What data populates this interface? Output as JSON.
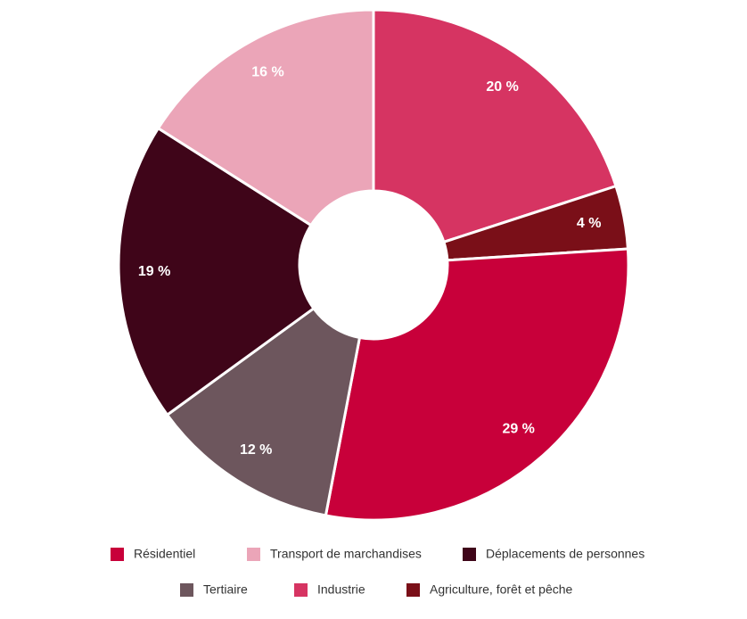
{
  "chart_data": {
    "type": "donut",
    "categories": [
      "Industrie",
      "Agriculture, forêt et pêche",
      "Résidentiel",
      "Tertiaire",
      "Déplacements de personnes",
      "Transport de marchandises"
    ],
    "values": [
      20,
      4,
      29,
      12,
      19,
      16
    ],
    "value_labels": [
      "20 %",
      "4 %",
      "29 %",
      "12 %",
      "19 %",
      "16 %"
    ],
    "colors": [
      "#d63462",
      "#7a0f18",
      "#c8003a",
      "#6d565d",
      "#3f0519",
      "#eba5b8"
    ]
  }
}
